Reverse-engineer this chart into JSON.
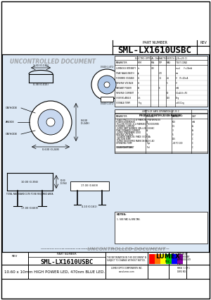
{
  "title": "SML-LX1610USBC",
  "description": "10.60 x 10mm HIGH POWER LED, 470nm BLUE LED.",
  "part_number": "SML-LX1610USBC",
  "watermark": "UNCONTROLLED DOCUMENT",
  "bg_color": "#ffffff",
  "border_color": "#000000",
  "lumex_colors": [
    "#ff0000",
    "#ff7700",
    "#ffff00",
    "#00cc00",
    "#0000ff",
    "#8800aa"
  ],
  "drawing_bg": "#dce8f5",
  "footer_part_number": "SML-LX1610USBC",
  "footer_description": "10.60 x 10mm HIGH POWER LED, 470nm BLUE LED."
}
